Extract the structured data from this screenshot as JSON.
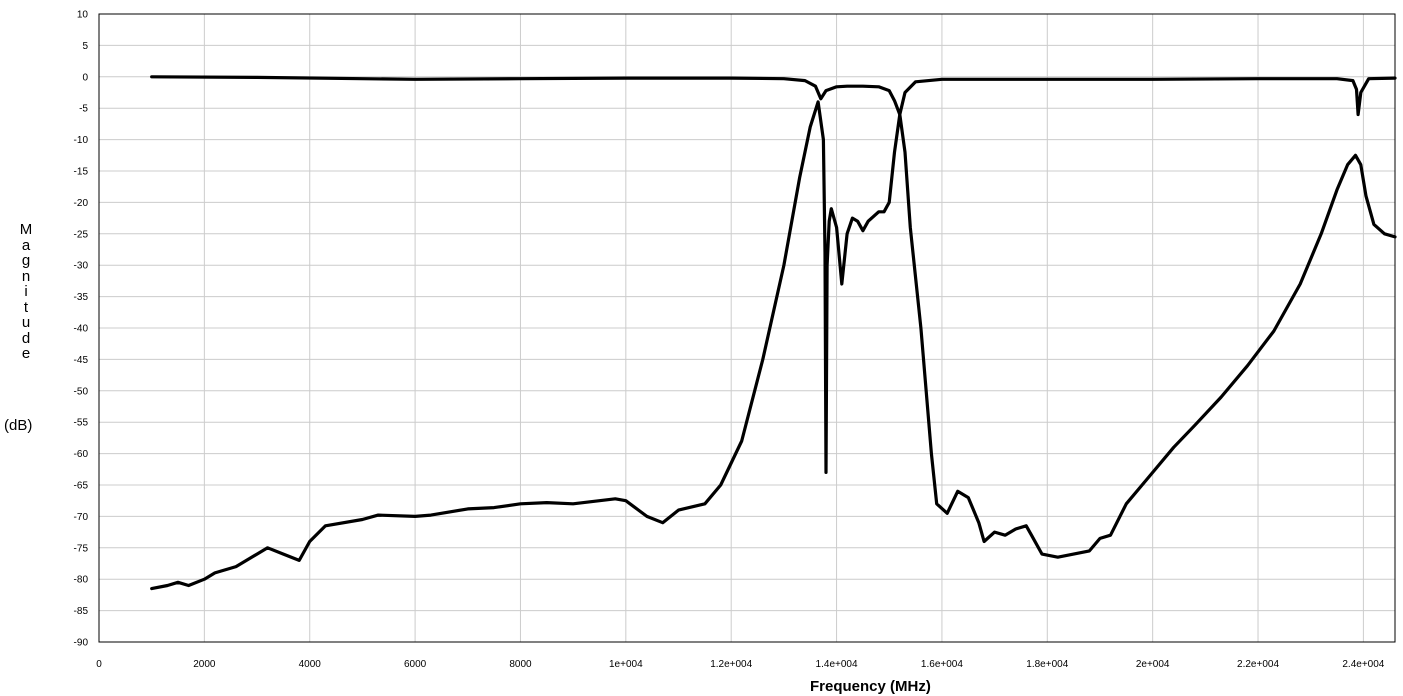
{
  "chart_data": {
    "type": "line",
    "xlabel": "Frequency (MHz)",
    "ylabel_letters": [
      "M",
      "a",
      "g",
      "n",
      "i",
      "t",
      "u",
      "d",
      "e"
    ],
    "ylabel_unit": "(dB)",
    "xlim": [
      0,
      24600
    ],
    "ylim": [
      -90,
      10
    ],
    "grid": true,
    "line_color": "#000000",
    "grid_color": "#cccccc",
    "xticks": [
      0,
      2000,
      4000,
      6000,
      8000,
      10000,
      12000,
      14000,
      16000,
      18000,
      20000,
      22000,
      24000
    ],
    "xtick_labels": [
      "0",
      "2000",
      "4000",
      "6000",
      "8000",
      "1e+004",
      "1.2e+004",
      "1.4e+004",
      "1.6e+004",
      "1.8e+004",
      "2e+004",
      "2.2e+004",
      "2.4e+004"
    ],
    "yticks": [
      10,
      5,
      0,
      -5,
      -10,
      -15,
      -20,
      -25,
      -30,
      -35,
      -40,
      -45,
      -50,
      -55,
      -60,
      -65,
      -70,
      -75,
      -80,
      -85,
      -90
    ],
    "ytick_labels": [
      "10",
      "5",
      "0",
      "-5",
      "-10",
      "-15",
      "-20",
      "-25",
      "-30",
      "-35",
      "-40",
      "-45",
      "-50",
      "-55",
      "-60",
      "-65",
      "-70",
      "-75",
      "-80",
      "-85",
      "-90"
    ],
    "series": [
      {
        "x": [
          1000,
          3000,
          5000,
          6000,
          8000,
          10000,
          12000,
          13000,
          13400,
          13600,
          13700,
          13800,
          14000,
          14200,
          14500,
          14800,
          15000,
          15100,
          15200,
          15300,
          15500,
          16000,
          18000,
          20000,
          22000,
          23500,
          23800,
          23870,
          23900,
          23950,
          24100,
          24600
        ],
        "y": [
          0,
          -0.1,
          -0.3,
          -0.4,
          -0.3,
          -0.2,
          -0.2,
          -0.3,
          -0.6,
          -1.5,
          -3.5,
          -2.2,
          -1.6,
          -1.5,
          -1.5,
          -1.6,
          -2.2,
          -3.8,
          -6,
          -2.5,
          -0.8,
          -0.4,
          -0.4,
          -0.4,
          -0.3,
          -0.3,
          -0.6,
          -2,
          -6,
          -2.5,
          -0.3,
          -0.2
        ]
      },
      {
        "x": [
          1000,
          1300,
          1500,
          1700,
          2000,
          2200,
          2600,
          3000,
          3200,
          3500,
          3800,
          4000,
          4300,
          5000,
          5300,
          6000,
          6300,
          7000,
          7500,
          8000,
          8500,
          9000,
          9500,
          9800,
          10000,
          10400,
          10700,
          11000,
          11500,
          11800,
          12200,
          12600,
          13000,
          13300,
          13500,
          13650,
          13750,
          13780,
          13800,
          13820,
          13860,
          13900,
          14000,
          14100,
          14200,
          14300,
          14400,
          14500,
          14600,
          14800,
          14900,
          15000,
          15100,
          15200,
          15300,
          15400,
          15600,
          15800,
          15900,
          16100,
          16300,
          16500,
          16700,
          16800,
          17000,
          17200,
          17400,
          17600,
          17700,
          17900,
          18200,
          18500,
          18800,
          19000,
          19200,
          19500,
          19800,
          20000,
          20400,
          20800,
          21300,
          21800,
          22300,
          22800,
          23200,
          23500,
          23700,
          23850,
          23950,
          24050,
          24200,
          24400,
          24600
        ],
        "y": [
          -81.5,
          -81,
          -80.5,
          -81,
          -80,
          -79,
          -78,
          -76,
          -75,
          -76,
          -77,
          -74,
          -71.5,
          -70.5,
          -69.8,
          -70,
          -69.8,
          -68.8,
          -68.6,
          -68,
          -67.8,
          -68,
          -67.5,
          -67.2,
          -67.5,
          -70,
          -71,
          -69,
          -68,
          -65,
          -58,
          -45,
          -30,
          -16,
          -8,
          -4,
          -10,
          -28,
          -63,
          -30,
          -23,
          -21,
          -24,
          -33,
          -25,
          -22.5,
          -23,
          -24.5,
          -23,
          -21.5,
          -21.5,
          -20,
          -12,
          -6,
          -12,
          -24,
          -40,
          -60,
          -68,
          -69.5,
          -66,
          -67,
          -71,
          -74,
          -72.5,
          -73,
          -72,
          -71.5,
          -73,
          -76,
          -76.5,
          -76,
          -75.5,
          -73.5,
          -73,
          -68,
          -65,
          -63,
          -59,
          -55.5,
          -51,
          -46,
          -40.5,
          -33,
          -25,
          -18,
          -14,
          -12.5,
          -14,
          -19,
          -23.5,
          -25,
          -25.5
        ]
      }
    ]
  }
}
